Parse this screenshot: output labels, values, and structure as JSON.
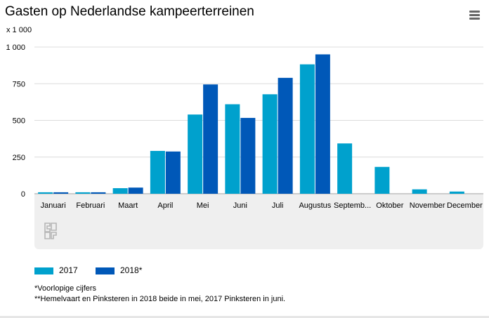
{
  "header": {
    "title": "Gasten op Nederlandse kampeerterreinen",
    "menu_icon": "hamburger-menu-icon"
  },
  "chart_data": {
    "type": "bar",
    "title": "Gasten op Nederlandse kampeerterreinen",
    "unit_label": "x 1 000",
    "xlabel": "",
    "ylabel": "",
    "ylim": [
      0,
      1000
    ],
    "yticks": [
      0,
      250,
      500,
      750,
      1000
    ],
    "ytick_labels": [
      "0",
      "250",
      "500",
      "750",
      "1 000"
    ],
    "grid": true,
    "categories": [
      "Januari",
      "Februari",
      "Maart",
      "April",
      "Mei",
      "Juni",
      "Juli",
      "Augustus",
      "Septemb...",
      "Oktober",
      "November",
      "December"
    ],
    "series": [
      {
        "name": "2017",
        "color": "#00a1cd",
        "values": [
          10,
          10,
          38,
          292,
          540,
          610,
          678,
          882,
          343,
          183,
          30,
          15
        ]
      },
      {
        "name": "2018*",
        "color": "#0058b8",
        "values": [
          10,
          10,
          42,
          288,
          745,
          517,
          790,
          950,
          null,
          null,
          null,
          null
        ]
      }
    ],
    "legend_position": "bottom-left"
  },
  "footnotes": [
    "*Voorlopige cijfers",
    "**Hemelvaart en Pinksteren in 2018 beide in mei, 2017 Pinksteren in juni."
  ],
  "logo": "cbs-logo"
}
